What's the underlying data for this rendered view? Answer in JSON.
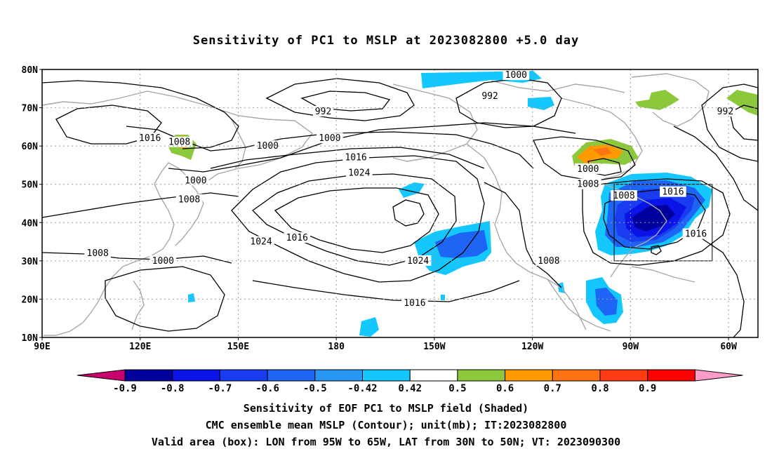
{
  "title": "Sensitivity of PC1 to MSLP at 2023082800 +5.0 day",
  "map": {
    "lat_labels": [
      "80N",
      "70N",
      "60N",
      "50N",
      "40N",
      "30N",
      "20N",
      "10N"
    ],
    "lon_labels": [
      "90E",
      "120E",
      "150E",
      "180",
      "150W",
      "120W",
      "90W",
      "60W"
    ],
    "lat_range": [
      10,
      80
    ],
    "lon_range_east": [
      90,
      309
    ],
    "valid_box": {
      "lon_w": -95,
      "lon_e": -65,
      "lat_s": 30,
      "lat_n": 50
    },
    "contour_labels": [
      {
        "text": "1000",
        "lon": 235,
        "lat": 78.5
      },
      {
        "text": "992",
        "lon": 227,
        "lat": 73
      },
      {
        "text": "992",
        "lon": 176,
        "lat": 69
      },
      {
        "text": "992",
        "lon": 299,
        "lat": 69
      },
      {
        "text": "1016",
        "lon": 123,
        "lat": 62
      },
      {
        "text": "1008",
        "lon": 132,
        "lat": 61
      },
      {
        "text": "1000",
        "lon": 159,
        "lat": 60
      },
      {
        "text": "1000",
        "lon": 178,
        "lat": 62
      },
      {
        "text": "1016",
        "lon": 186,
        "lat": 57
      },
      {
        "text": "1024",
        "lon": 187,
        "lat": 53
      },
      {
        "text": "1000",
        "lon": 137,
        "lat": 51
      },
      {
        "text": "1000",
        "lon": 257,
        "lat": 54
      },
      {
        "text": "1008",
        "lon": 257,
        "lat": 50
      },
      {
        "text": "1008",
        "lon": 135,
        "lat": 46
      },
      {
        "text": "1008",
        "lon": 268,
        "lat": 47
      },
      {
        "text": "1016",
        "lon": 283,
        "lat": 48
      },
      {
        "text": "1016",
        "lon": 290,
        "lat": 37
      },
      {
        "text": "1024",
        "lon": 157,
        "lat": 35
      },
      {
        "text": "1016",
        "lon": 168,
        "lat": 36
      },
      {
        "text": "1024",
        "lon": 205,
        "lat": 30
      },
      {
        "text": "1008",
        "lon": 107,
        "lat": 32
      },
      {
        "text": "1000",
        "lon": 127,
        "lat": 30
      },
      {
        "text": "1008",
        "lon": 245,
        "lat": 30
      },
      {
        "text": "1016",
        "lon": 204,
        "lat": 19
      }
    ]
  },
  "colorbar": {
    "labels": [
      "-0.9",
      "-0.8",
      "-0.7",
      "-0.6",
      "-0.5",
      "-0.42",
      "0.42",
      "0.5",
      "0.6",
      "0.7",
      "0.8",
      "0.9"
    ],
    "colors": [
      "#00009c",
      "#0a14e6",
      "#1a3cf0",
      "#1e64f5",
      "#2896f5",
      "#14c8ff",
      "#ffffff",
      "#8cc83c",
      "#ff9b00",
      "#ff7314",
      "#ff3c14",
      "#ff0000"
    ],
    "low_end_color": "#c8006e",
    "high_end_color": "#ff9bc8"
  },
  "captions": {
    "line1": "Sensitivity of EOF PC1 to MSLP field (Shaded)",
    "line2": "CMC ensemble mean MSLP (Contour); unit(mb); IT:2023082800",
    "line3": "Valid area (box): LON from 95W to 65W, LAT from 30N to 50N; VT: 2023090300"
  }
}
